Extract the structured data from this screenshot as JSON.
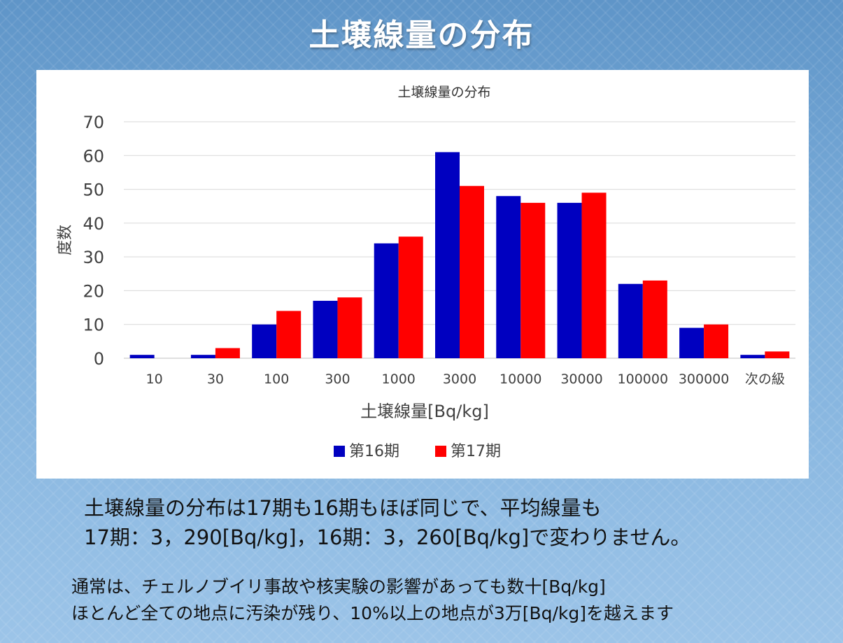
{
  "slide": {
    "title": "土壌線量の分布",
    "summary_lines": [
      "土壌線量の分布は17期も16期もほぼ同じで、平均線量も",
      "17期：3，290[Bq/kg]，16期：3，260[Bq/kg]で変わりません。"
    ],
    "note_lines": [
      "通常は、チェルノブイリ事故や核実験の影響があっても数十[Bq/kg]",
      "ほとんど全ての地点に汚染が残り、10%以上の地点が3万[Bq/kg]を越えます"
    ]
  },
  "colors": {
    "series_16": "#0000c0",
    "series_17": "#ff0000",
    "background_top": "#5f95c8",
    "background_bottom": "#9cc4e8"
  },
  "chart_data": {
    "type": "bar",
    "title": "土壌線量の分布",
    "xlabel": "土壌線量[Bq/kg]",
    "ylabel": "度数",
    "categories": [
      "10",
      "30",
      "100",
      "300",
      "1000",
      "3000",
      "10000",
      "30000",
      "100000",
      "300000",
      "次の級"
    ],
    "series": [
      {
        "name": "第16期",
        "values": [
          1,
          1,
          10,
          17,
          34,
          61,
          48,
          46,
          22,
          9,
          1
        ]
      },
      {
        "name": "第17期",
        "values": [
          0,
          3,
          14,
          18,
          36,
          51,
          46,
          49,
          23,
          10,
          2
        ]
      }
    ],
    "ylim": [
      0,
      70
    ],
    "yticks": [
      0,
      10,
      20,
      30,
      40,
      50,
      60,
      70
    ],
    "grid": true,
    "legend_position": "bottom"
  }
}
